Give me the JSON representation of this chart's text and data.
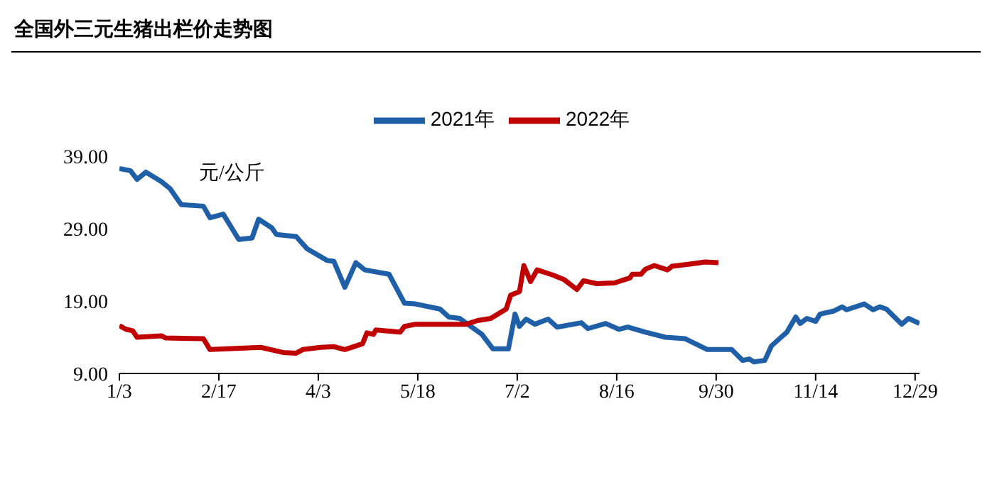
{
  "chart_data": {
    "type": "line",
    "title": "全国外三元生猪出栏价走势图",
    "ylabel": "元/公斤",
    "xlim": [
      "--01-03",
      "--12-31"
    ],
    "xticks": [
      {
        "value": "--01-03",
        "label": "1/3"
      },
      {
        "value": "--02-17",
        "label": "2/17"
      },
      {
        "value": "--04-03",
        "label": "4/3"
      },
      {
        "value": "--05-18",
        "label": "5/18"
      },
      {
        "value": "--07-02",
        "label": "7/2"
      },
      {
        "value": "--08-16",
        "label": "8/16"
      },
      {
        "value": "--09-30",
        "label": "9/30"
      },
      {
        "value": "--11-14",
        "label": "11/14"
      },
      {
        "value": "--12-29",
        "label": "12/29"
      }
    ],
    "ylim": [
      9,
      39
    ],
    "yticks": [
      {
        "value": 9,
        "label": "9.00"
      },
      {
        "value": 19,
        "label": "19.00"
      },
      {
        "value": 29,
        "label": "29.00"
      },
      {
        "value": 39,
        "label": "39.00"
      }
    ],
    "grid": false,
    "legend": "top",
    "marker": "none",
    "line_style": "solid",
    "series": [
      {
        "name": "2021年",
        "color": "#1f5fa8",
        "x": [
          "--01-03",
          "--01-08",
          "--01-11",
          "--01-15",
          "--01-22",
          "--01-26",
          "--01-31",
          "--02-10",
          "--02-13",
          "--02-19",
          "--02-26",
          "--03-04",
          "--03-07",
          "--03-13",
          "--03-15",
          "--03-24",
          "--03-29",
          "--04-07",
          "--04-10",
          "--04-15",
          "--04-20",
          "--04-24",
          "--05-05",
          "--05-12",
          "--05-17",
          "--05-28",
          "--06-01",
          "--06-06",
          "--06-16",
          "--06-21",
          "--06-28",
          "--07-01",
          "--07-03",
          "--07-06",
          "--07-10",
          "--07-16",
          "--07-20",
          "--07-31",
          "--08-03",
          "--08-11",
          "--08-17",
          "--08-21",
          "--08-29",
          "--09-07",
          "--09-16",
          "--09-26",
          "--10-07",
          "--10-12",
          "--10-15",
          "--10-17",
          "--10-22",
          "--10-25",
          "--10-29",
          "--11-01",
          "--11-05",
          "--11-07",
          "--11-10",
          "--11-14",
          "--11-16",
          "--11-22",
          "--11-26",
          "--11-28",
          "--12-06",
          "--12-10",
          "--12-13",
          "--12-16",
          "--12-23",
          "--12-26",
          "--12-31"
        ],
        "values": [
          37.3,
          37.0,
          35.8,
          36.8,
          35.5,
          34.5,
          32.3,
          32.1,
          30.5,
          31.0,
          27.5,
          27.7,
          30.3,
          29.1,
          28.2,
          27.9,
          26.2,
          24.6,
          24.5,
          20.9,
          24.3,
          23.3,
          22.7,
          18.7,
          18.6,
          17.9,
          16.8,
          16.6,
          14.4,
          12.4,
          12.4,
          17.2,
          15.5,
          16.5,
          15.8,
          16.5,
          15.4,
          16.0,
          15.2,
          15.9,
          15.1,
          15.4,
          14.7,
          14.0,
          13.8,
          12.3,
          12.3,
          10.8,
          11.0,
          10.6,
          10.8,
          12.8,
          13.9,
          14.7,
          16.8,
          15.9,
          16.6,
          16.2,
          17.2,
          17.6,
          18.2,
          17.8,
          18.6,
          17.8,
          18.2,
          17.9,
          15.8,
          16.6,
          15.9
        ]
      },
      {
        "name": "2022年",
        "color": "#c00000",
        "x": [
          "--01-03",
          "--01-06",
          "--01-09",
          "--01-11",
          "--01-22",
          "--01-24",
          "--02-10",
          "--02-13",
          "--03-08",
          "--03-18",
          "--03-24",
          "--03-27",
          "--04-04",
          "--04-10",
          "--04-15",
          "--04-23",
          "--04-25",
          "--04-28",
          "--04-29",
          "--05-10",
          "--05-12",
          "--05-17",
          "--06-09",
          "--06-14",
          "--06-20",
          "--06-27",
          "--06-29",
          "--07-03",
          "--07-05",
          "--07-08",
          "--07-11",
          "--07-18",
          "--07-23",
          "--07-29",
          "--08-01",
          "--08-07",
          "--08-15",
          "--08-22",
          "--08-23",
          "--08-27",
          "--08-29",
          "--09-02",
          "--09-08",
          "--09-10",
          "--09-18",
          "--09-25",
          "--10-01"
        ],
        "values": [
          15.6,
          15.1,
          14.9,
          14.0,
          14.2,
          13.9,
          13.8,
          12.3,
          12.6,
          11.9,
          11.8,
          12.3,
          12.6,
          12.7,
          12.3,
          13.1,
          14.6,
          14.4,
          15.0,
          14.7,
          15.5,
          15.8,
          15.8,
          16.3,
          16.6,
          17.9,
          19.8,
          20.3,
          23.9,
          21.7,
          23.3,
          22.6,
          22.0,
          20.6,
          21.8,
          21.4,
          21.5,
          22.2,
          22.7,
          22.7,
          23.4,
          23.9,
          23.3,
          23.8,
          24.1,
          24.4,
          24.3
        ]
      }
    ]
  }
}
